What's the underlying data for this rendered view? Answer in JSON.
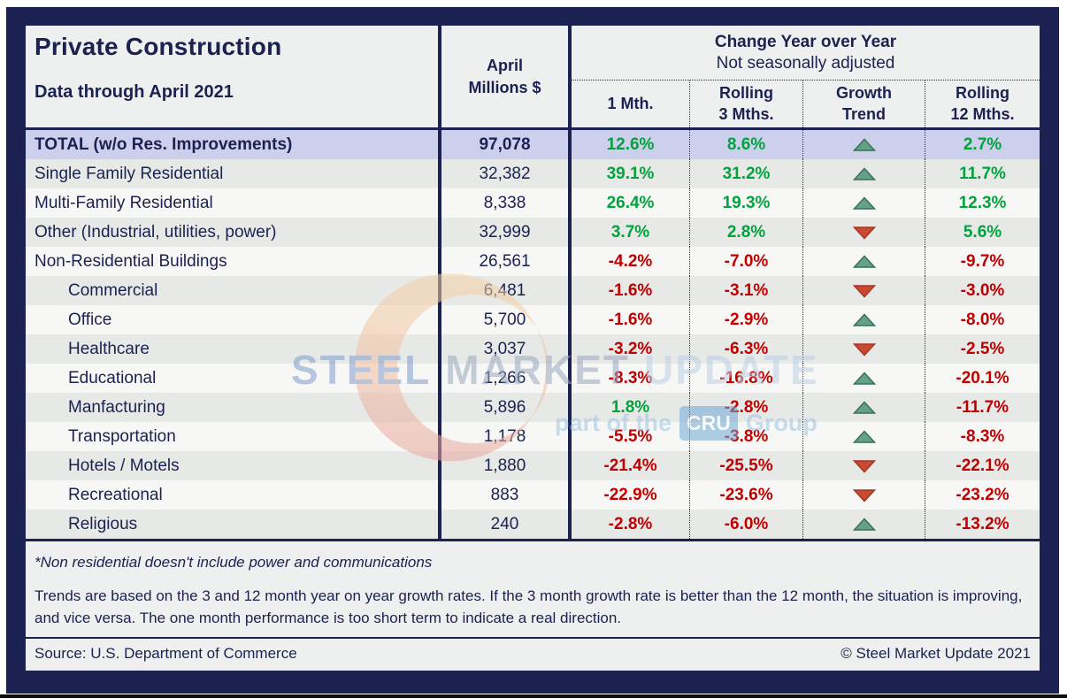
{
  "header": {
    "title": "Private Construction",
    "subtitle": "Data through April 2021",
    "april_col": {
      "line1": "April",
      "line2": "Millions $"
    },
    "change_title": "Change Year over Year",
    "change_subtitle": "Not seasonally adjusted",
    "columns": [
      "1 Mth.",
      "Rolling\n3 Mths.",
      "Growth\nTrend",
      "Rolling\n12 Mths."
    ]
  },
  "rows": [
    {
      "label": "TOTAL (w/o Res. Improvements)",
      "indent": false,
      "highlight": true,
      "millions": "97,078",
      "m1": "12.6%",
      "r3": "8.6%",
      "trend": "up",
      "r12": "2.7%"
    },
    {
      "label": "Single Family Residential",
      "indent": false,
      "highlight": false,
      "millions": "32,382",
      "m1": "39.1%",
      "r3": "31.2%",
      "trend": "up",
      "r12": "11.7%"
    },
    {
      "label": "Multi-Family Residential",
      "indent": false,
      "highlight": false,
      "millions": "8,338",
      "m1": "26.4%",
      "r3": "19.3%",
      "trend": "up",
      "r12": "12.3%"
    },
    {
      "label": "Other (Industrial, utilities, power)",
      "indent": false,
      "highlight": false,
      "millions": "32,999",
      "m1": "3.7%",
      "r3": "2.8%",
      "trend": "down",
      "r12": "5.6%"
    },
    {
      "label": "Non-Residential Buildings",
      "indent": false,
      "highlight": false,
      "millions": "26,561",
      "m1": "-4.2%",
      "r3": "-7.0%",
      "trend": "up",
      "r12": "-9.7%"
    },
    {
      "label": "Commercial",
      "indent": true,
      "highlight": false,
      "millions": "6,481",
      "m1": "-1.6%",
      "r3": "-3.1%",
      "trend": "down",
      "r12": "-3.0%"
    },
    {
      "label": "Office",
      "indent": true,
      "highlight": false,
      "millions": "5,700",
      "m1": "-1.6%",
      "r3": "-2.9%",
      "trend": "up",
      "r12": "-8.0%"
    },
    {
      "label": "Healthcare",
      "indent": true,
      "highlight": false,
      "millions": "3,037",
      "m1": "-3.2%",
      "r3": "-6.3%",
      "trend": "down",
      "r12": "-2.5%"
    },
    {
      "label": "Educational",
      "indent": true,
      "highlight": false,
      "millions": "1,266",
      "m1": "-8.3%",
      "r3": "-16.8%",
      "trend": "up",
      "r12": "-20.1%"
    },
    {
      "label": "Manfacturing",
      "indent": true,
      "highlight": false,
      "millions": "5,896",
      "m1": "1.8%",
      "r3": "-2.8%",
      "trend": "up",
      "r12": "-11.7%"
    },
    {
      "label": "Transportation",
      "indent": true,
      "highlight": false,
      "millions": "1,178",
      "m1": "-5.5%",
      "r3": "-3.8%",
      "trend": "up",
      "r12": "-8.3%"
    },
    {
      "label": "Hotels / Motels",
      "indent": true,
      "highlight": false,
      "millions": "1,880",
      "m1": "-21.4%",
      "r3": "-25.5%",
      "trend": "down",
      "r12": "-22.1%"
    },
    {
      "label": "Recreational",
      "indent": true,
      "highlight": false,
      "millions": "883",
      "m1": "-22.9%",
      "r3": "-23.6%",
      "trend": "down",
      "r12": "-23.2%"
    },
    {
      "label": "Religious",
      "indent": true,
      "highlight": false,
      "millions": "240",
      "m1": "-2.8%",
      "r3": "-6.0%",
      "trend": "up",
      "r12": "-13.2%"
    }
  ],
  "footer": {
    "footnote": "*Non residential doesn't include power and communications",
    "trends_text": "Trends are based on the 3 and 12 month year on year growth rates. If the 3 month growth rate is better than the 12 month, the situation is improving, and vice versa. The one month performance is too short term to indicate a real direction.",
    "source": "Source: U.S. Department of Commerce",
    "copyright": "© Steel Market Update 2021"
  },
  "watermark": {
    "word1": "STEEL",
    "word2": "MARKET",
    "word3": "UPDATE",
    "part": "part of the",
    "cru": "CRU",
    "group": "Group"
  },
  "colors": {
    "navy": "#1b2150",
    "positive_text": "#00a33c",
    "negative_text": "#c00000",
    "up_arrow_fill": "#64a186",
    "up_arrow_stroke": "#3a7058",
    "down_arrow_fill": "#c94a31",
    "down_arrow_stroke": "#a03823",
    "highlight_row": "#cdd0ec",
    "gray_row": "#e7e9e7",
    "white_row": "#f7f8f6"
  },
  "icons": {
    "up": "up-trend-triangle",
    "down": "down-trend-triangle"
  }
}
